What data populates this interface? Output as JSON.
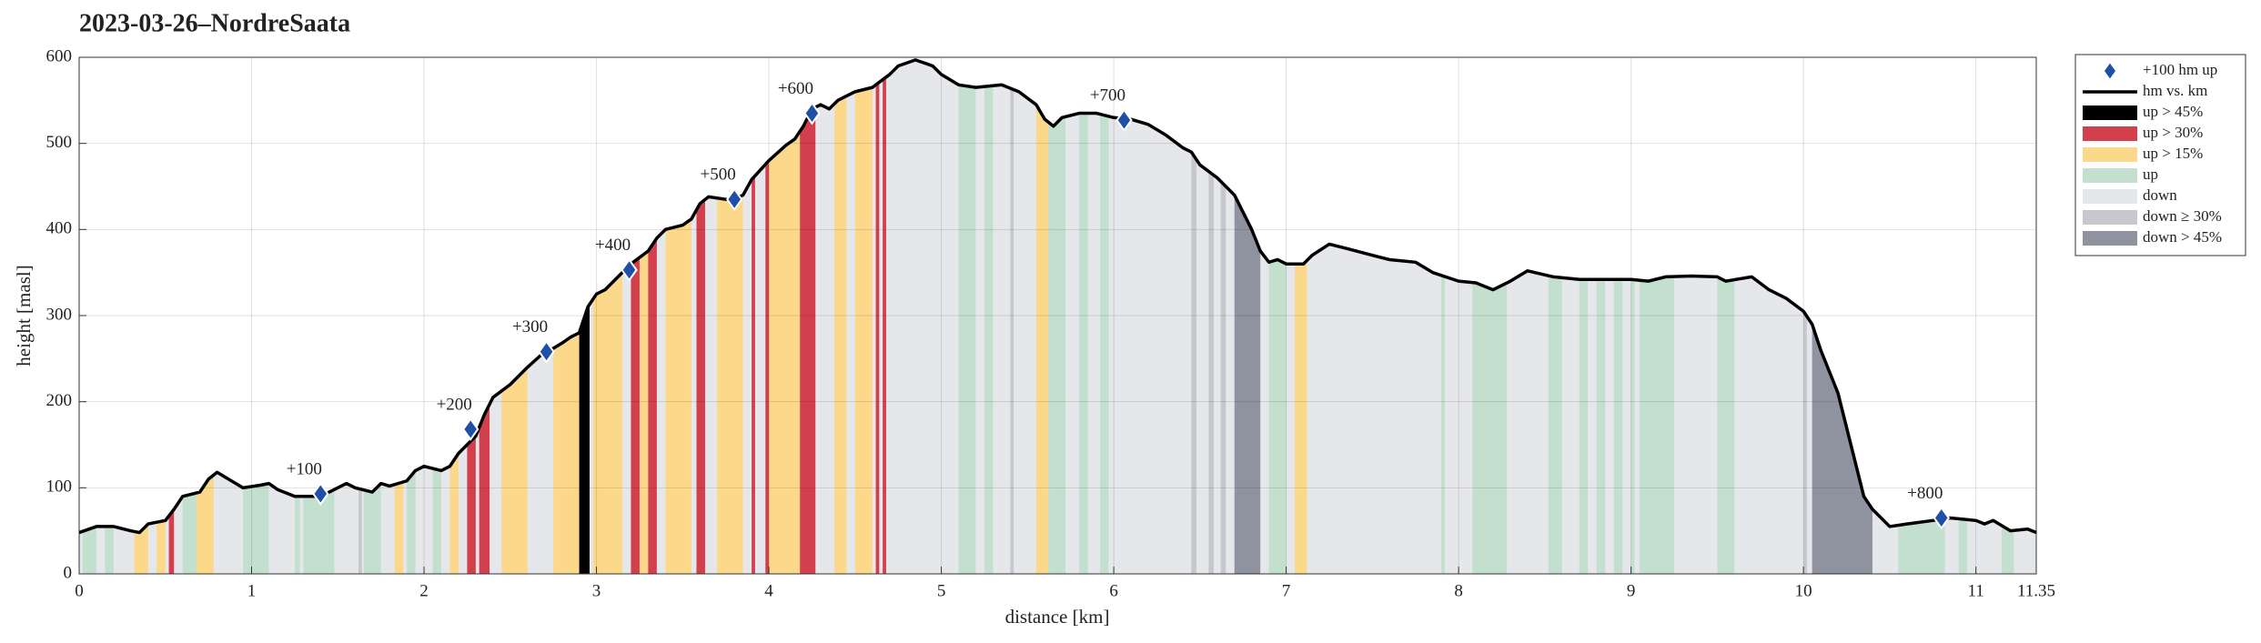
{
  "chart_data": {
    "type": "line",
    "title": "2023-03-26–NordreSaata",
    "xlabel": "distance [km]",
    "ylabel": "height [masl]",
    "xlim": [
      0,
      11.35
    ],
    "ylim": [
      0,
      600
    ],
    "xticks": [
      0,
      1,
      2,
      3,
      4,
      5,
      6,
      7,
      8,
      9,
      10,
      11,
      11.35
    ],
    "yticks": [
      0,
      100,
      200,
      300,
      400,
      500,
      600
    ],
    "grid": true,
    "legend": "outside upper right",
    "series": [
      {
        "name": "hm vs. km",
        "color": "#000000",
        "x": [
          0,
          0.1,
          0.2,
          0.3,
          0.35,
          0.4,
          0.5,
          0.55,
          0.6,
          0.7,
          0.75,
          0.8,
          0.85,
          0.95,
          1.05,
          1.1,
          1.15,
          1.25,
          1.4,
          1.5,
          1.55,
          1.6,
          1.7,
          1.75,
          1.8,
          1.9,
          1.95,
          2.0,
          2.1,
          2.15,
          2.2,
          2.3,
          2.35,
          2.4,
          2.5,
          2.55,
          2.6,
          2.7,
          2.75,
          2.8,
          2.85,
          2.9,
          2.95,
          3.0,
          3.05,
          3.15,
          3.2,
          3.3,
          3.35,
          3.4,
          3.5,
          3.55,
          3.6,
          3.65,
          3.75,
          3.8,
          3.85,
          3.9,
          4.0,
          4.1,
          4.15,
          4.2,
          4.25,
          4.3,
          4.35,
          4.4,
          4.5,
          4.6,
          4.7,
          4.75,
          4.85,
          4.95,
          5.0,
          5.1,
          5.2,
          5.35,
          5.45,
          5.55,
          5.6,
          5.65,
          5.7,
          5.8,
          5.9,
          6.0,
          6.1,
          6.2,
          6.3,
          6.4,
          6.45,
          6.5,
          6.6,
          6.7,
          6.8,
          6.85,
          6.9,
          6.95,
          7.0,
          7.1,
          7.15,
          7.25,
          7.35,
          7.5,
          7.6,
          7.75,
          7.85,
          8.0,
          8.1,
          8.2,
          8.3,
          8.4,
          8.55,
          8.7,
          8.85,
          9.0,
          9.1,
          9.2,
          9.35,
          9.5,
          9.55,
          9.7,
          9.8,
          9.9,
          10.0,
          10.05,
          10.1,
          10.15,
          10.2,
          10.25,
          10.3,
          10.35,
          10.4,
          10.5,
          10.6,
          10.75,
          10.85,
          11.0,
          11.05,
          11.1,
          11.2,
          11.3,
          11.35
        ],
        "values": [
          48,
          55,
          55,
          50,
          48,
          58,
          62,
          75,
          90,
          95,
          110,
          118,
          112,
          100,
          103,
          105,
          98,
          90,
          90,
          100,
          105,
          100,
          95,
          105,
          102,
          108,
          120,
          125,
          120,
          125,
          140,
          160,
          185,
          205,
          220,
          230,
          240,
          258,
          262,
          268,
          275,
          280,
          310,
          325,
          330,
          350,
          360,
          375,
          390,
          400,
          405,
          412,
          430,
          438,
          435,
          435,
          440,
          458,
          480,
          498,
          505,
          520,
          540,
          545,
          540,
          550,
          560,
          565,
          580,
          590,
          597,
          590,
          580,
          568,
          565,
          568,
          560,
          545,
          528,
          520,
          530,
          535,
          535,
          530,
          528,
          522,
          510,
          495,
          490,
          475,
          460,
          440,
          400,
          375,
          362,
          365,
          360,
          360,
          370,
          383,
          378,
          370,
          365,
          362,
          350,
          340,
          338,
          330,
          340,
          352,
          345,
          342,
          342,
          342,
          340,
          345,
          346,
          345,
          340,
          345,
          330,
          320,
          305,
          290,
          260,
          235,
          210,
          170,
          130,
          90,
          75,
          55,
          58,
          62,
          65,
          62,
          58,
          62,
          50,
          52,
          48
        ]
      }
    ],
    "markers": {
      "name": "+100 hm up",
      "color": "#1f4fa6",
      "x": [
        1.4,
        2.27,
        2.71,
        3.19,
        3.8,
        4.25,
        6.06,
        10.8
      ],
      "values": [
        93,
        168,
        258,
        353,
        435,
        535,
        527,
        65
      ],
      "labels": [
        "+100",
        "+200",
        "+300",
        "+400",
        "+500",
        "+600",
        "+700",
        "+800"
      ]
    },
    "bands": [
      {
        "name": "up > 45%",
        "color": "#000000",
        "ranges": [
          [
            2.9,
            2.96
          ]
        ]
      },
      {
        "name": "up > 30%",
        "color": "#d3404d",
        "ranges": [
          [
            0.52,
            0.55
          ],
          [
            2.25,
            2.3
          ],
          [
            2.32,
            2.38
          ],
          [
            3.2,
            3.25
          ],
          [
            3.3,
            3.35
          ],
          [
            3.58,
            3.63
          ],
          [
            3.9,
            3.92
          ],
          [
            3.98,
            4.0
          ],
          [
            4.18,
            4.27
          ],
          [
            4.62,
            4.64
          ],
          [
            4.66,
            4.68
          ]
        ]
      },
      {
        "name": "up > 15%",
        "color": "#fbd88a",
        "ranges": [
          [
            0.32,
            0.4
          ],
          [
            0.45,
            0.5
          ],
          [
            0.68,
            0.78
          ],
          [
            1.83,
            1.88
          ],
          [
            2.15,
            2.2
          ],
          [
            2.45,
            2.6
          ],
          [
            2.75,
            2.9
          ],
          [
            2.98,
            3.15
          ],
          [
            3.25,
            3.3
          ],
          [
            3.4,
            3.55
          ],
          [
            3.7,
            3.85
          ],
          [
            4.0,
            4.18
          ],
          [
            4.38,
            4.45
          ],
          [
            4.5,
            4.6
          ],
          [
            5.55,
            5.62
          ],
          [
            7.05,
            7.12
          ]
        ]
      },
      {
        "name": "up",
        "color": "#c3dfce",
        "ranges": [
          [
            0.02,
            0.1
          ],
          [
            0.15,
            0.2
          ],
          [
            0.6,
            0.68
          ],
          [
            0.95,
            1.1
          ],
          [
            1.25,
            1.28
          ],
          [
            1.3,
            1.48
          ],
          [
            1.65,
            1.75
          ],
          [
            1.9,
            1.95
          ],
          [
            2.05,
            2.1
          ],
          [
            5.1,
            5.2
          ],
          [
            5.25,
            5.3
          ],
          [
            5.62,
            5.72
          ],
          [
            5.8,
            5.85
          ],
          [
            5.92,
            5.97
          ],
          [
            6.9,
            7.0
          ],
          [
            7.9,
            7.92
          ],
          [
            8.08,
            8.28
          ],
          [
            8.52,
            8.6
          ],
          [
            8.7,
            8.75
          ],
          [
            8.8,
            8.85
          ],
          [
            8.9,
            8.95
          ],
          [
            9.0,
            9.02
          ],
          [
            9.05,
            9.25
          ],
          [
            9.5,
            9.6
          ],
          [
            10.55,
            10.82
          ],
          [
            10.9,
            10.95
          ],
          [
            11.15,
            11.22
          ]
        ]
      },
      {
        "name": "down",
        "color": "#e6e7ea",
        "ranges": [
          [
            0,
            11.35
          ]
        ]
      },
      {
        "name": "down ≥ 30%",
        "color": "#c6c8ce",
        "ranges": [
          [
            1.62,
            1.64
          ],
          [
            5.4,
            5.42
          ],
          [
            6.45,
            6.48
          ],
          [
            6.55,
            6.58
          ],
          [
            6.62,
            6.65
          ],
          [
            10.0,
            10.02
          ]
        ]
      },
      {
        "name": "down > 45%",
        "color": "#8f939f",
        "ranges": [
          [
            6.7,
            6.85
          ],
          [
            10.05,
            10.4
          ]
        ]
      }
    ]
  }
}
